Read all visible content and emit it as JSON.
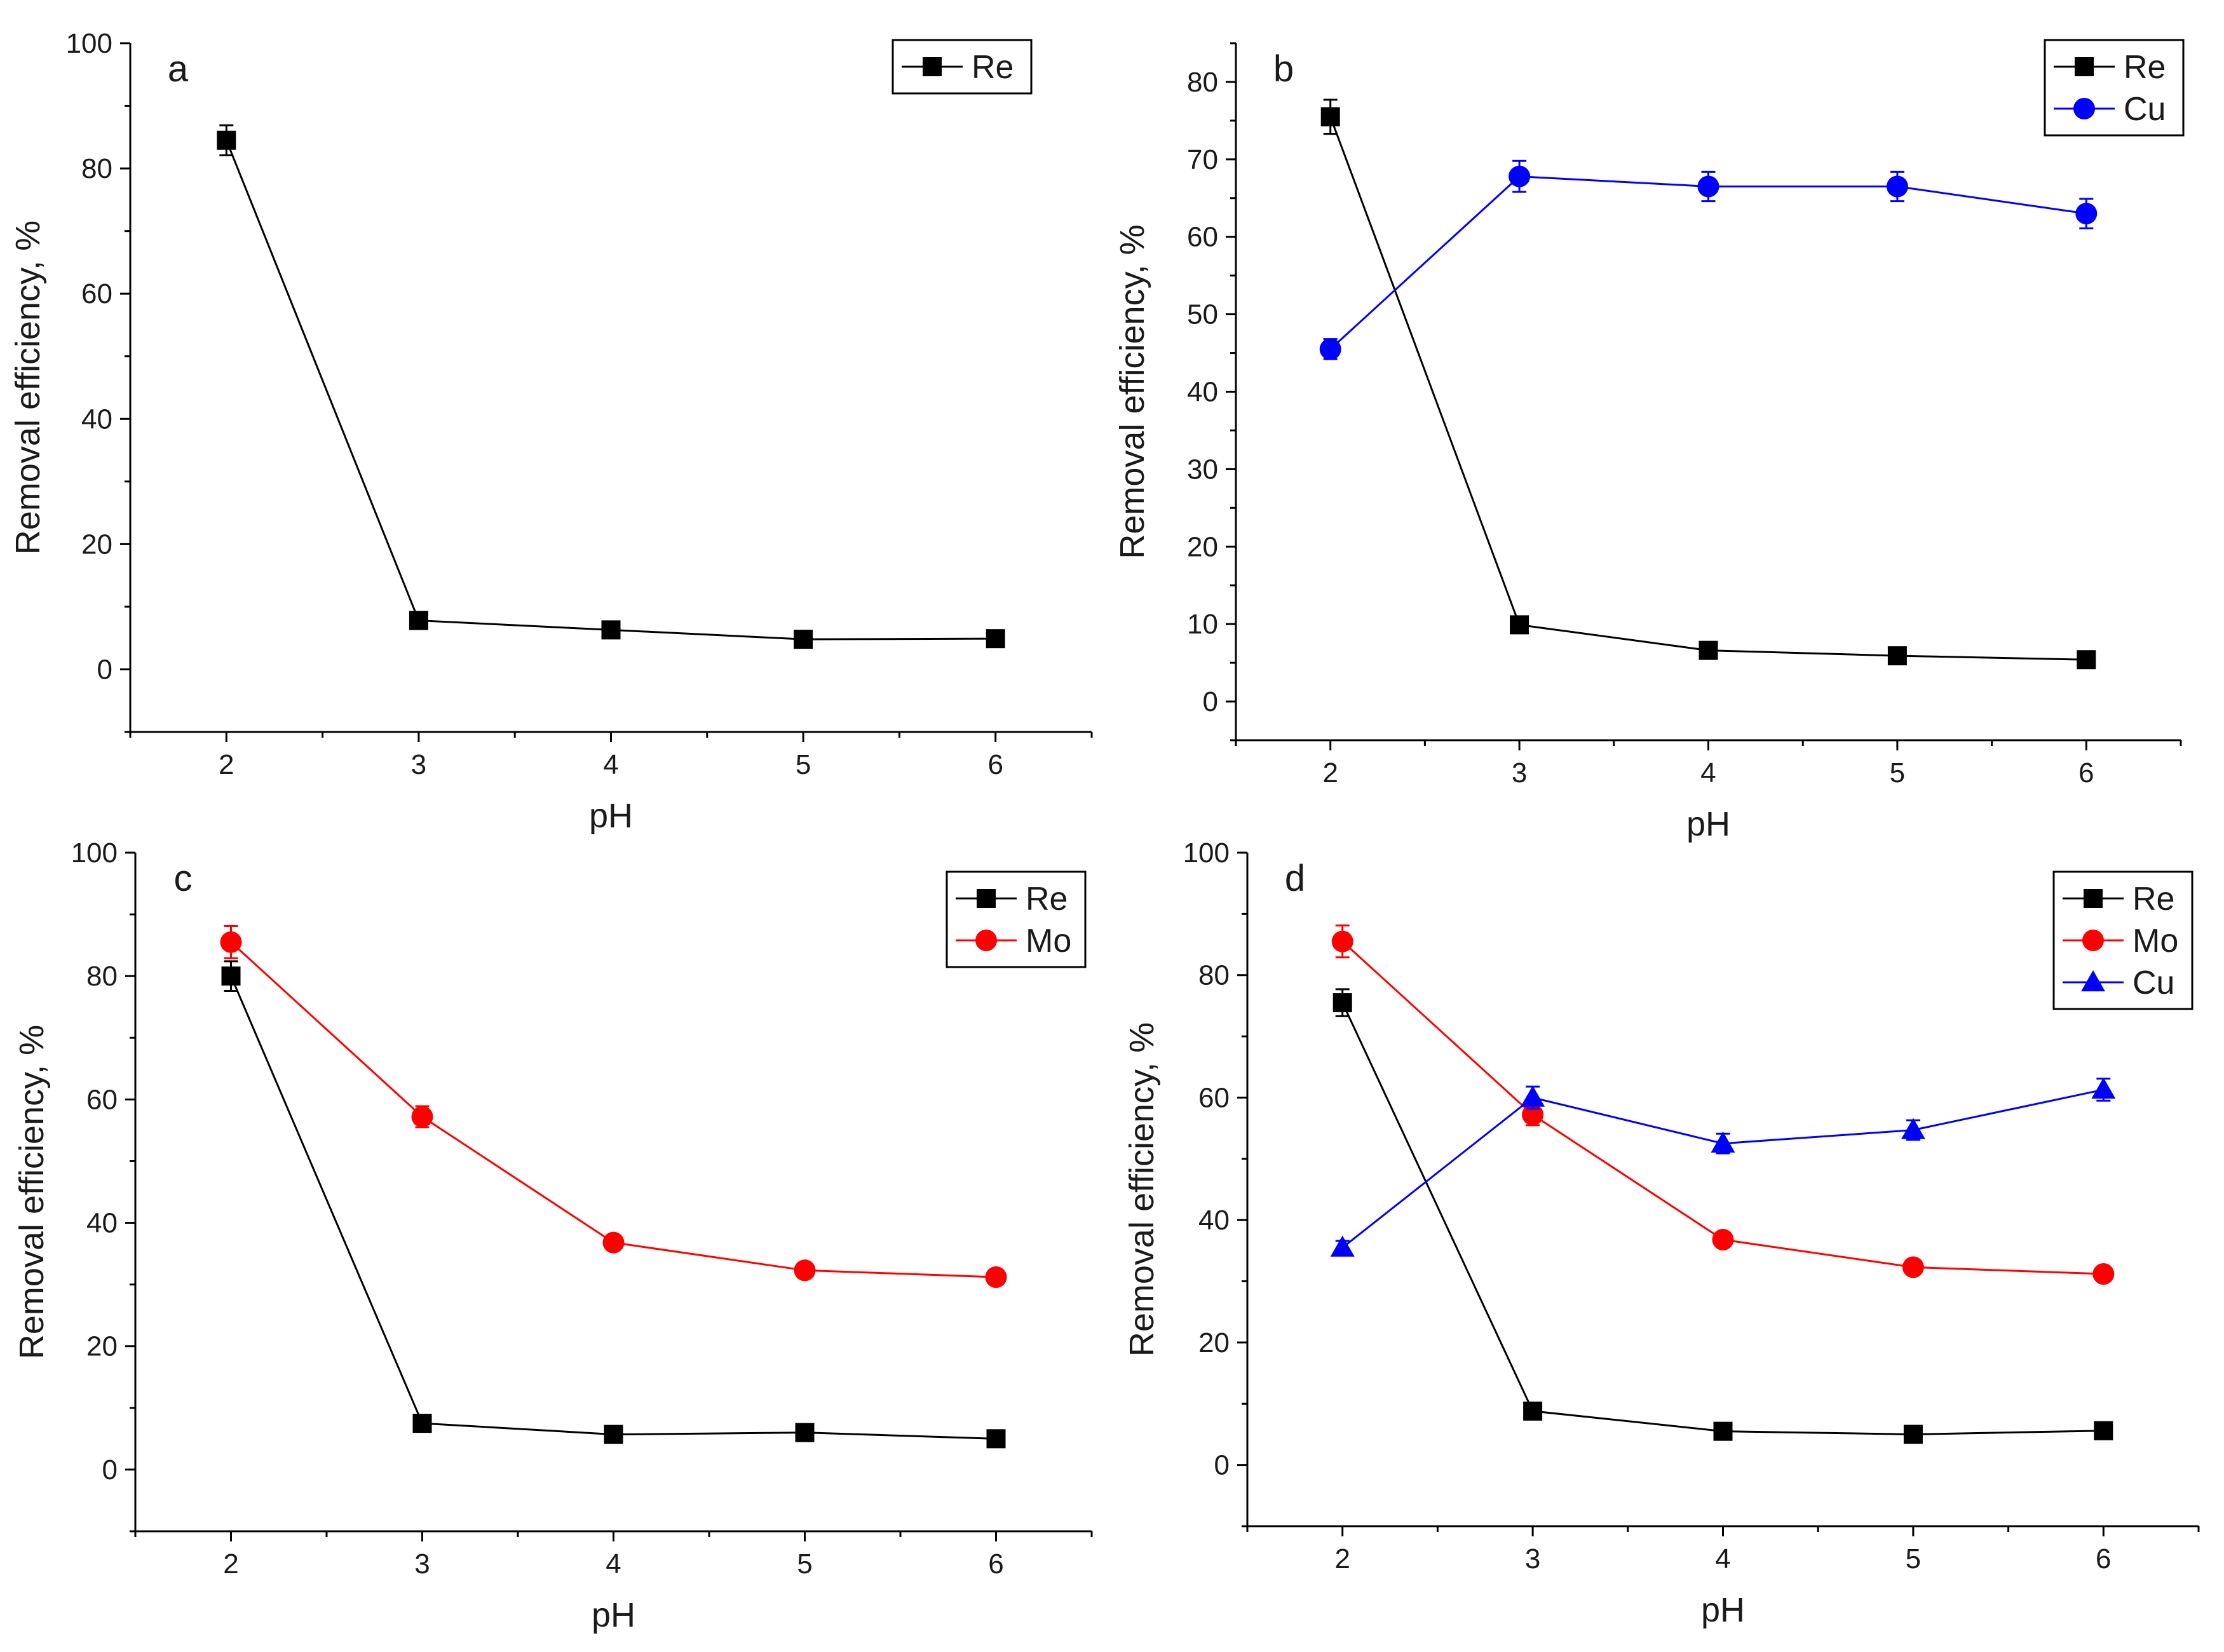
{
  "figure": {
    "caption": ""
  },
  "chart_data": [
    {
      "id": "a",
      "type": "line",
      "panel_label": "a",
      "xlabel": "pH",
      "ylabel": "Removal efficiency, %",
      "xlim": [
        1.5,
        6.5
      ],
      "ylim": [
        -10,
        100
      ],
      "x_ticks": [
        2,
        3,
        4,
        5,
        6
      ],
      "y_ticks": [
        0,
        20,
        40,
        60,
        80,
        100
      ],
      "x_minor_step": 0.5,
      "y_minor_step": 10,
      "legend_position": "top-right",
      "x": [
        2,
        3,
        4,
        5,
        6
      ],
      "series": [
        {
          "name": "Re",
          "color": "#000000",
          "marker": "square",
          "values": [
            84.5,
            7.8,
            6.3,
            4.8,
            4.9
          ],
          "errors": [
            2.4,
            0.8,
            0.6,
            0.5,
            0.5
          ]
        }
      ]
    },
    {
      "id": "b",
      "type": "line",
      "panel_label": "b",
      "xlabel": "pH",
      "ylabel": "Removal efficiency, %",
      "xlim": [
        1.5,
        6.5
      ],
      "ylim": [
        -5,
        85
      ],
      "x_ticks": [
        2,
        3,
        4,
        5,
        6
      ],
      "y_ticks": [
        0,
        10,
        20,
        30,
        40,
        50,
        60,
        70,
        80
      ],
      "x_minor_step": 0.5,
      "y_minor_step": 5,
      "legend_position": "top-right",
      "x": [
        2,
        3,
        4,
        5,
        6
      ],
      "series": [
        {
          "name": "Re",
          "color": "#000000",
          "marker": "square",
          "values": [
            75.5,
            9.9,
            6.6,
            5.9,
            5.4
          ],
          "errors": [
            2.2,
            0.6,
            0.5,
            0.4,
            0.4
          ]
        },
        {
          "name": "Cu",
          "color": "#0000ff",
          "marker": "circle",
          "values": [
            45.5,
            67.8,
            66.5,
            66.5,
            63.0
          ],
          "errors": [
            1.3,
            2.0,
            1.9,
            1.9,
            1.9
          ]
        }
      ]
    },
    {
      "id": "c",
      "type": "line",
      "panel_label": "c",
      "xlabel": "pH",
      "ylabel": "Removal efficiency, %",
      "xlim": [
        1.5,
        6.5
      ],
      "ylim": [
        -10,
        100
      ],
      "x_ticks": [
        2,
        3,
        4,
        5,
        6
      ],
      "y_ticks": [
        0,
        20,
        40,
        60,
        80,
        100
      ],
      "x_minor_step": 0.5,
      "y_minor_step": 10,
      "legend_position": "top-right",
      "x": [
        2,
        3,
        4,
        5,
        6
      ],
      "series": [
        {
          "name": "Re",
          "color": "#000000",
          "marker": "square",
          "values": [
            80.0,
            7.5,
            5.7,
            6.0,
            5.0
          ],
          "errors": [
            2.4,
            0.6,
            0.5,
            0.5,
            0.4
          ]
        },
        {
          "name": "Mo",
          "color": "#ff0000",
          "marker": "circle",
          "values": [
            85.5,
            57.2,
            36.8,
            32.3,
            31.2
          ],
          "errors": [
            2.6,
            1.7,
            1.1,
            1.0,
            0.9
          ]
        }
      ]
    },
    {
      "id": "d",
      "type": "line",
      "panel_label": "d",
      "xlabel": "pH",
      "ylabel": "Removal efficiency, %",
      "xlim": [
        1.5,
        6.5
      ],
      "ylim": [
        -10,
        100
      ],
      "x_ticks": [
        2,
        3,
        4,
        5,
        6
      ],
      "y_ticks": [
        0,
        20,
        40,
        60,
        80,
        100
      ],
      "x_minor_step": 0.5,
      "y_minor_step": 10,
      "legend_position": "top-right",
      "x": [
        2,
        3,
        4,
        5,
        6
      ],
      "series": [
        {
          "name": "Re",
          "color": "#000000",
          "marker": "square",
          "values": [
            75.5,
            8.8,
            5.5,
            5.0,
            5.6
          ],
          "errors": [
            2.2,
            0.6,
            0.5,
            0.4,
            0.4
          ]
        },
        {
          "name": "Mo",
          "color": "#ff0000",
          "marker": "circle",
          "values": [
            85.5,
            57.2,
            36.8,
            32.3,
            31.2
          ],
          "errors": [
            2.6,
            1.7,
            1.1,
            1.0,
            0.9
          ]
        },
        {
          "name": "Cu",
          "color": "#0000ff",
          "marker": "triangle",
          "values": [
            35.5,
            60.0,
            52.5,
            54.7,
            61.3
          ],
          "errors": [
            1.1,
            1.8,
            1.6,
            1.6,
            1.8
          ]
        }
      ]
    }
  ]
}
